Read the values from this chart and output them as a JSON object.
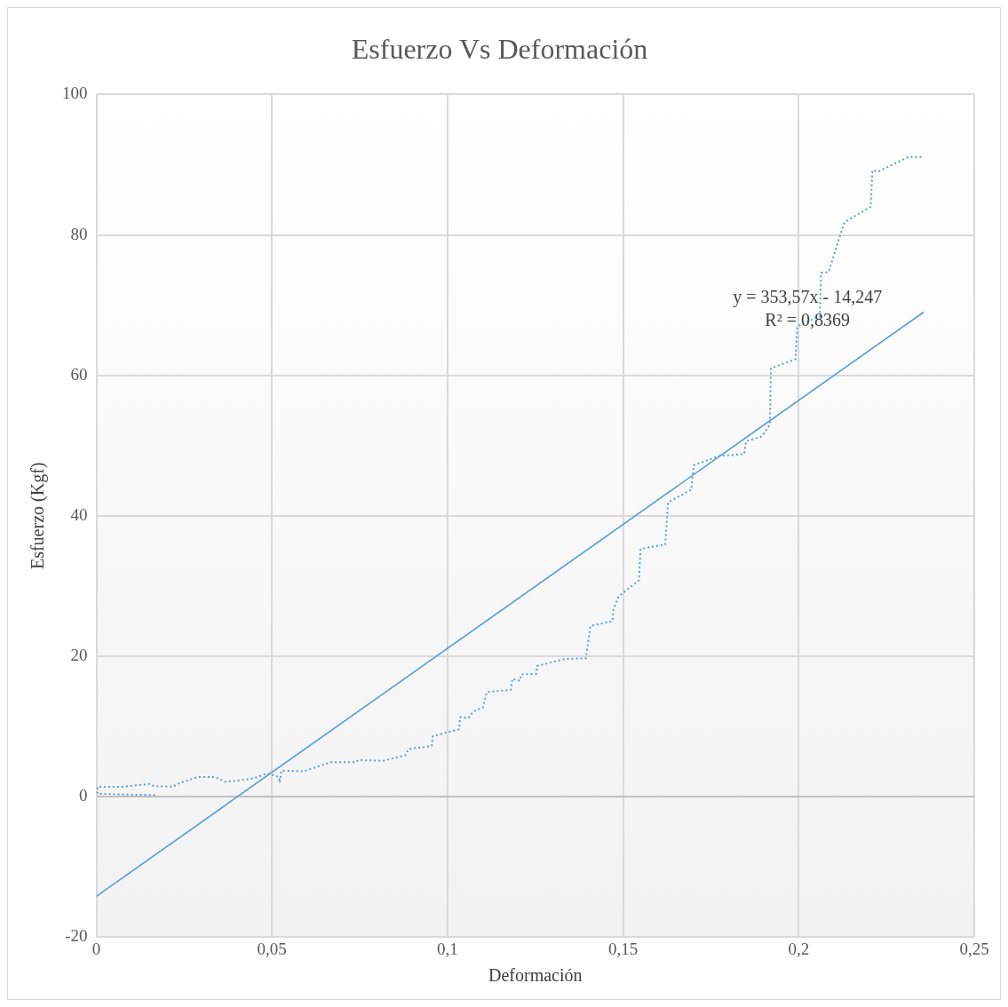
{
  "chart_data": {
    "type": "line",
    "title": "Esfuerzo Vs Deformación",
    "xlabel": "Deformación",
    "ylabel": "Esfuerzo (Kgf)",
    "xlim": [
      0,
      0.25
    ],
    "xticks": [
      0,
      {
        "value": 0.05,
        "label": "0,05"
      },
      {
        "value": 0.1,
        "label": "0,1"
      },
      {
        "value": 0.15,
        "label": "0,15"
      },
      {
        "value": 0.2,
        "label": "0,2"
      },
      {
        "value": 0.25,
        "label": "0,25"
      }
    ],
    "ylim": [
      -20,
      100
    ],
    "yticks": [
      -20,
      0,
      20,
      40,
      60,
      80,
      100
    ],
    "grid": true,
    "legend": false,
    "marker": "none",
    "annotations": [
      "y = 353,57x - 14,247",
      "R² = 0,8369"
    ],
    "series": [
      {
        "type": "line",
        "color": "#5b9bd5",
        "line_style": "dotted",
        "x": [
          0.0167,
          0.0003,
          0.0003,
          0.0073,
          0.0151,
          0.0164,
          0.0219,
          0.023,
          0.029,
          0.0337,
          0.0368,
          0.0438,
          0.046,
          0.0485,
          0.052,
          0.0522,
          0.0527,
          0.059,
          0.0668,
          0.0739,
          0.0746,
          0.0817,
          0.088,
          0.089,
          0.0955,
          0.0958,
          0.1033,
          0.1036,
          0.106,
          0.1073,
          0.1101,
          0.1112,
          0.118,
          0.1185,
          0.1206,
          0.121,
          0.1253,
          0.1255,
          0.1334,
          0.1394,
          0.1407,
          0.147,
          0.1472,
          0.1487,
          0.1545,
          0.155,
          0.162,
          0.1628,
          0.1694,
          0.1701,
          0.1772,
          0.1845,
          0.185,
          0.1895,
          0.1918,
          0.1921,
          0.1991,
          0.1996,
          0.206,
          0.2064,
          0.2085,
          0.213,
          0.2205,
          0.221,
          0.2226,
          0.2312,
          0.2356
        ],
        "values": [
          0.2,
          0.4,
          1.4,
          1.4,
          1.8,
          1.5,
          1.4,
          1.8,
          2.8,
          2.8,
          2.1,
          2.5,
          2.8,
          3.3,
          2.8,
          2.0,
          3.7,
          3.6,
          4.9,
          4.9,
          5.2,
          5.1,
          5.9,
          6.8,
          7.2,
          8.6,
          9.6,
          11.3,
          11.2,
          12.1,
          12.7,
          14.9,
          15.2,
          16.8,
          16.5,
          17.4,
          17.5,
          18.6,
          19.6,
          19.7,
          24.3,
          25.0,
          26.6,
          28.5,
          30.8,
          35.3,
          35.9,
          41.9,
          43.7,
          47.2,
          48.5,
          48.8,
          50.6,
          51.3,
          53.0,
          61.0,
          62.3,
          67.0,
          68.4,
          74.6,
          74.7,
          81.8,
          84.0,
          89.2,
          89.0,
          91.1,
          91.1
        ]
      },
      {
        "type": "line",
        "color": "#5b9bd5",
        "line_style": "solid",
        "x": [
          0,
          0.2356
        ],
        "values": [
          -14.2,
          69.0
        ]
      }
    ]
  }
}
